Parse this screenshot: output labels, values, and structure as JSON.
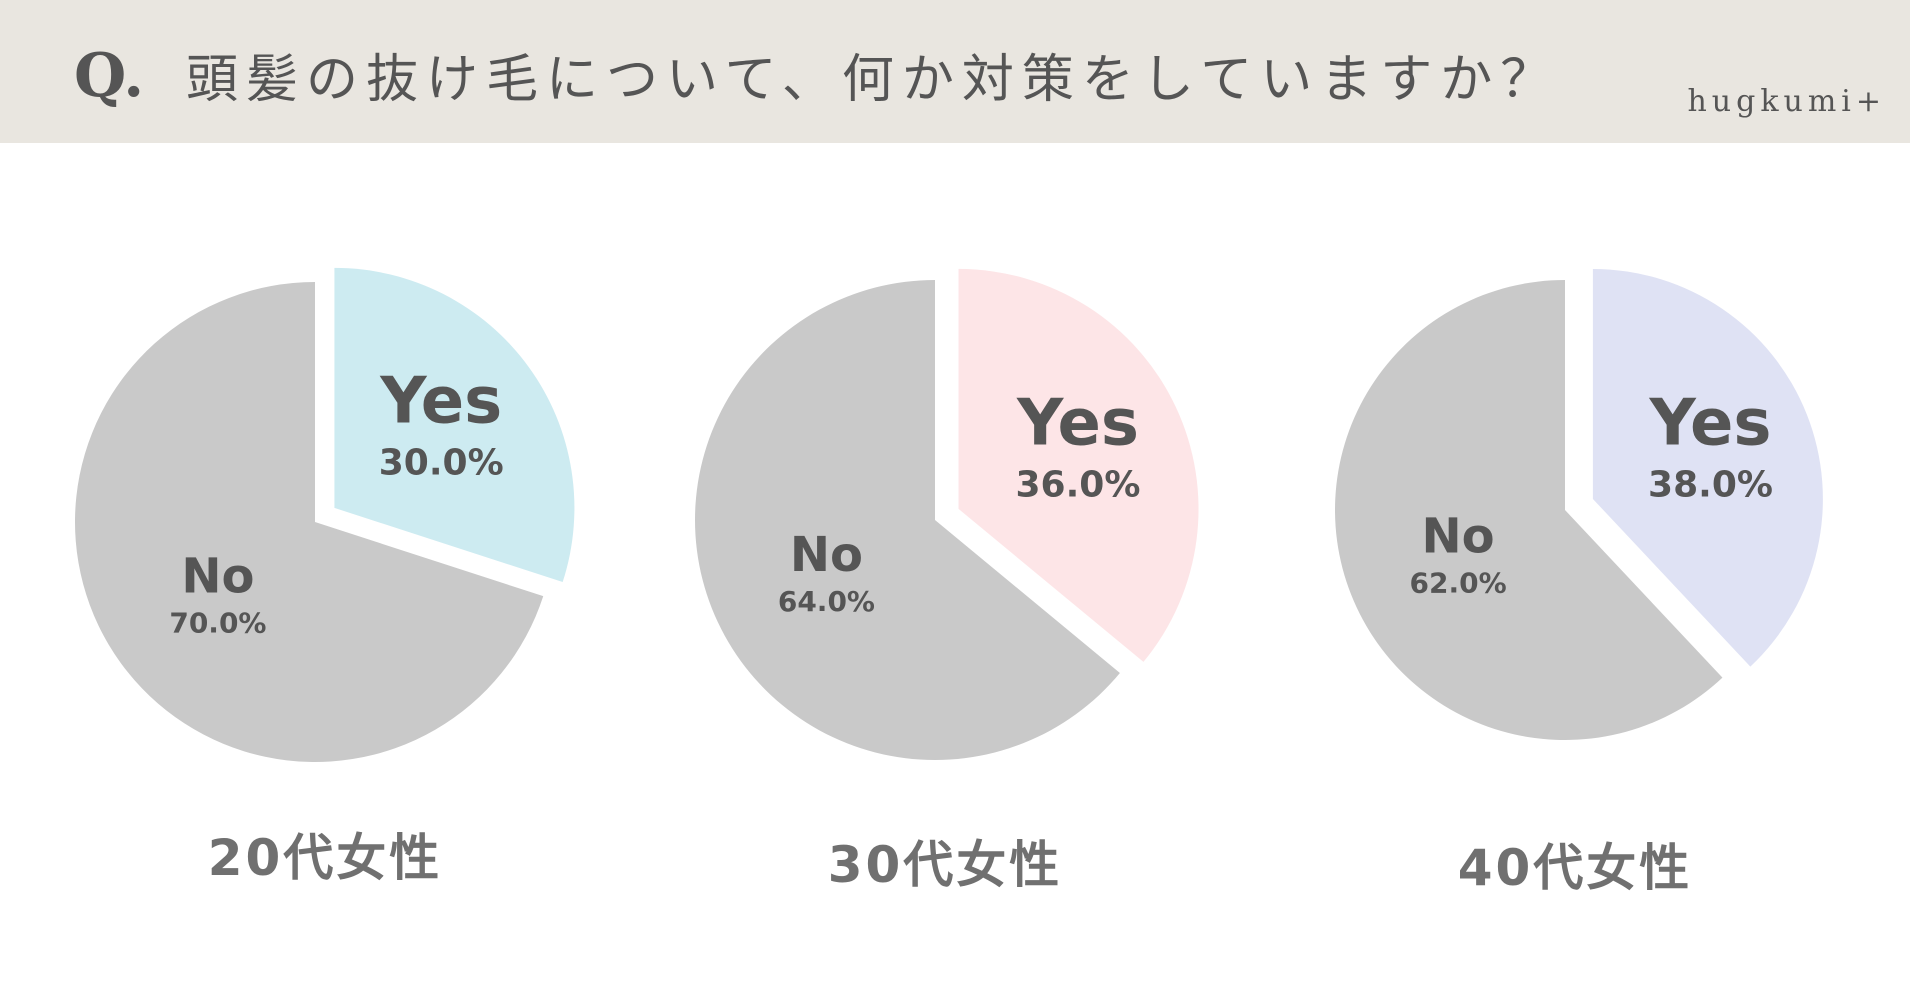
{
  "header": {
    "q_mark": "Q.",
    "question": "頭髪の抜け毛について、何か対策をしていますか？",
    "logo": "hugkumi+"
  },
  "chart_data": [
    {
      "type": "pie",
      "label": "20代女性",
      "slices": [
        {
          "name": "Yes",
          "value": 30.0,
          "display": "30.0%",
          "color": "#cdebf1"
        },
        {
          "name": "No",
          "value": 70.0,
          "display": "70.0%",
          "color": "#c9c9c9"
        }
      ]
    },
    {
      "type": "pie",
      "label": "30代女性",
      "slices": [
        {
          "name": "Yes",
          "value": 36.0,
          "display": "36.0%",
          "color": "#fde5e7"
        },
        {
          "name": "No",
          "value": 64.0,
          "display": "64.0%",
          "color": "#c9c9c9"
        }
      ]
    },
    {
      "type": "pie",
      "label": "40代女性",
      "slices": [
        {
          "name": "Yes",
          "value": 38.0,
          "display": "38.0%",
          "color": "#dfe2f4"
        },
        {
          "name": "No",
          "value": 62.0,
          "display": "62.0%",
          "color": "#c9c9c9"
        }
      ]
    }
  ]
}
